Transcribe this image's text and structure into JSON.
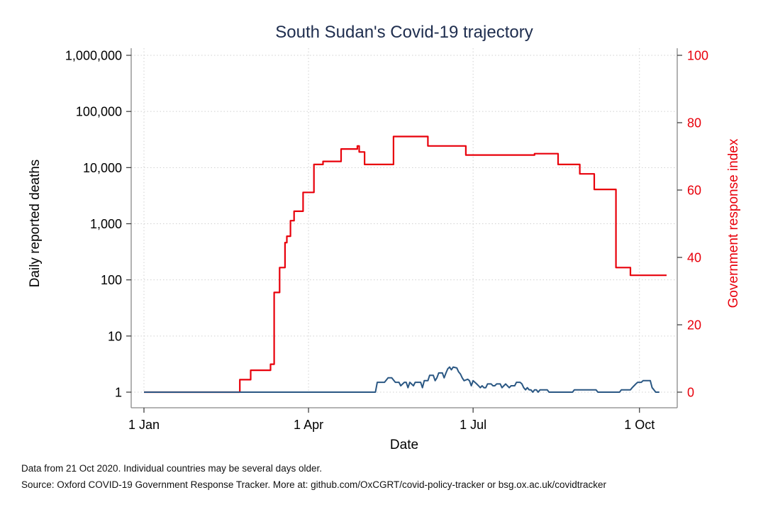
{
  "chart_data": {
    "type": "line",
    "title": "South Sudan's Covid-19 trajectory",
    "xlabel": "Date",
    "ylabel_left": "Daily reported deaths",
    "ylabel_right": "Government response index",
    "x_unit": "day of year 2020",
    "x_ticks": [
      {
        "day": 1,
        "label": "1 Jan"
      },
      {
        "day": 92,
        "label": "1 Apr"
      },
      {
        "day": 183,
        "label": "1 Jul"
      },
      {
        "day": 275,
        "label": "1 Oct"
      }
    ],
    "y_left_scale": "log",
    "y_left_ticks": [
      {
        "value": 1,
        "label": "1"
      },
      {
        "value": 10,
        "label": "10"
      },
      {
        "value": 100,
        "label": "100"
      },
      {
        "value": 1000,
        "label": "1,000"
      },
      {
        "value": 10000,
        "label": "10,000"
      },
      {
        "value": 100000,
        "label": "100,000"
      },
      {
        "value": 1000000,
        "label": "1,000,000"
      }
    ],
    "y_right_ticks": [
      {
        "value": 0,
        "label": "0"
      },
      {
        "value": 20,
        "label": "20"
      },
      {
        "value": 40,
        "label": "40"
      },
      {
        "value": 60,
        "label": "60"
      },
      {
        "value": 80,
        "label": "80"
      },
      {
        "value": 100,
        "label": "100"
      }
    ],
    "grid": true,
    "series": [
      {
        "axis": "right",
        "color": "#e8000b",
        "points": [
          [
            1,
            0
          ],
          [
            54,
            0
          ],
          [
            54,
            3.7
          ],
          [
            60,
            3.7
          ],
          [
            60,
            6.5
          ],
          [
            71,
            6.5
          ],
          [
            71,
            8.3
          ],
          [
            73,
            8.3
          ],
          [
            73,
            29.6
          ],
          [
            76,
            29.6
          ],
          [
            76,
            37
          ],
          [
            79,
            37
          ],
          [
            79,
            44.4
          ],
          [
            80,
            44.4
          ],
          [
            80,
            46.3
          ],
          [
            82,
            46.3
          ],
          [
            82,
            50.9
          ],
          [
            84,
            50.9
          ],
          [
            84,
            53.7
          ],
          [
            89,
            53.7
          ],
          [
            89,
            59.3
          ],
          [
            95,
            59.3
          ],
          [
            95,
            67.6
          ],
          [
            100,
            67.6
          ],
          [
            100,
            68.5
          ],
          [
            110,
            68.5
          ],
          [
            110,
            72.2
          ],
          [
            119,
            72.2
          ],
          [
            119,
            73.1
          ],
          [
            120,
            73.1
          ],
          [
            120,
            71.3
          ],
          [
            123,
            71.3
          ],
          [
            123,
            67.6
          ],
          [
            139,
            67.6
          ],
          [
            139,
            75.9
          ],
          [
            158,
            75.9
          ],
          [
            158,
            73.1
          ],
          [
            179,
            73.1
          ],
          [
            179,
            70.4
          ],
          [
            217,
            70.4
          ],
          [
            217,
            70.8
          ],
          [
            230,
            70.8
          ],
          [
            230,
            67.6
          ],
          [
            242,
            67.6
          ],
          [
            242,
            64.8
          ],
          [
            250,
            64.8
          ],
          [
            250,
            60.2
          ],
          [
            262,
            60.2
          ],
          [
            262,
            37
          ],
          [
            270,
            37
          ],
          [
            270,
            34.7
          ],
          [
            290,
            34.7
          ]
        ]
      },
      {
        "axis": "left",
        "color": "#2a5783",
        "points": [
          [
            1,
            1
          ],
          [
            129,
            1
          ],
          [
            130,
            1.5
          ],
          [
            134,
            1.5
          ],
          [
            136,
            1.8
          ],
          [
            138,
            1.8
          ],
          [
            140,
            1.5
          ],
          [
            142,
            1.5
          ],
          [
            143,
            1.3
          ],
          [
            145,
            1.5
          ],
          [
            146,
            1.5
          ],
          [
            147,
            1.2
          ],
          [
            148,
            1.5
          ],
          [
            150,
            1.3
          ],
          [
            151,
            1.5
          ],
          [
            154,
            1.5
          ],
          [
            155,
            1.2
          ],
          [
            156,
            1.6
          ],
          [
            158,
            1.6
          ],
          [
            159,
            2.0
          ],
          [
            161,
            2.0
          ],
          [
            162,
            1.6
          ],
          [
            163,
            1.8
          ],
          [
            164,
            2.2
          ],
          [
            166,
            2.2
          ],
          [
            167,
            1.8
          ],
          [
            168,
            2.2
          ],
          [
            169,
            2.6
          ],
          [
            170,
            2.8
          ],
          [
            171,
            2.5
          ],
          [
            172,
            2.8
          ],
          [
            174,
            2.7
          ],
          [
            175,
            2.3
          ],
          [
            176,
            2.1
          ],
          [
            177,
            1.8
          ],
          [
            178,
            1.6
          ],
          [
            180,
            1.7
          ],
          [
            181,
            1.6
          ],
          [
            182,
            1.3
          ],
          [
            183,
            1.6
          ],
          [
            184,
            1.5
          ],
          [
            185,
            1.4
          ],
          [
            186,
            1.3
          ],
          [
            187,
            1.2
          ],
          [
            188,
            1.3
          ],
          [
            189,
            1.2
          ],
          [
            190,
            1.2
          ],
          [
            191,
            1.4
          ],
          [
            193,
            1.4
          ],
          [
            194,
            1.3
          ],
          [
            195,
            1.3
          ],
          [
            196,
            1.4
          ],
          [
            198,
            1.4
          ],
          [
            199,
            1.2
          ],
          [
            200,
            1.3
          ],
          [
            201,
            1.4
          ],
          [
            203,
            1.2
          ],
          [
            204,
            1.3
          ],
          [
            206,
            1.3
          ],
          [
            207,
            1.5
          ],
          [
            209,
            1.5
          ],
          [
            210,
            1.4
          ],
          [
            211,
            1.2
          ],
          [
            212,
            1.1
          ],
          [
            213,
            1.2
          ],
          [
            214,
            1.1
          ],
          [
            215,
            1.1
          ],
          [
            216,
            1.0
          ],
          [
            217,
            1.1
          ],
          [
            218,
            1.1
          ],
          [
            219,
            1.0
          ],
          [
            220,
            1.1
          ],
          [
            224,
            1.1
          ],
          [
            225,
            1.0
          ],
          [
            238,
            1.0
          ],
          [
            239,
            1.1
          ],
          [
            251,
            1.1
          ],
          [
            252,
            1.0
          ],
          [
            264,
            1.0
          ],
          [
            265,
            1.1
          ],
          [
            270,
            1.1
          ],
          [
            271,
            1.2
          ],
          [
            272,
            1.3
          ],
          [
            273,
            1.4
          ],
          [
            274,
            1.5
          ],
          [
            276,
            1.5
          ],
          [
            277,
            1.6
          ],
          [
            281,
            1.6
          ],
          [
            282,
            1.2
          ],
          [
            283,
            1.1
          ],
          [
            284,
            1.0
          ],
          [
            286,
            1.0
          ]
        ]
      }
    ]
  },
  "notes": {
    "line1": "Data from 21 Oct 2020. Individual countries may be several days older.",
    "line2": "Source: Oxford COVID-19 Government Response Tracker. More at: github.com/OxCGRT/covid-policy-tracker or bsg.ox.ac.uk/covidtracker"
  },
  "colors": {
    "title": "#1e2d4e",
    "left_axis": "#000000",
    "right_axis": "#e8000b",
    "frame": "#888888",
    "grid": "#d0d0d0"
  }
}
